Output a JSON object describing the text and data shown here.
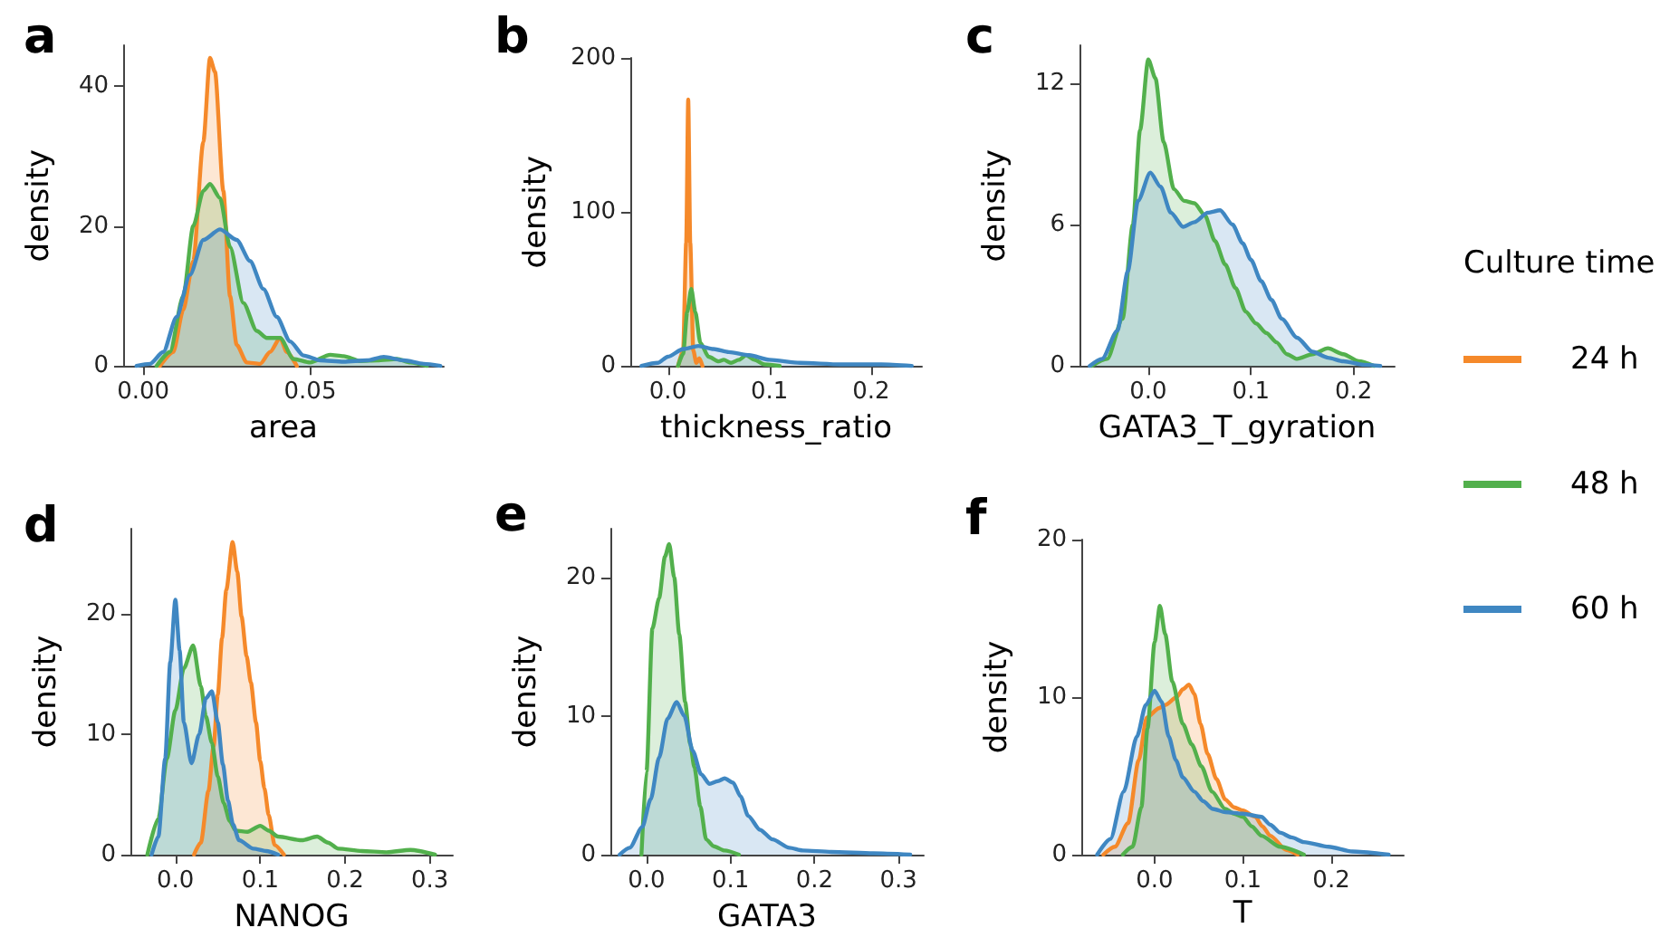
{
  "chart_data": [
    {
      "type": "area",
      "title": "a",
      "xlabel": "area",
      "ylabel": "density",
      "xlim": [
        -0.006,
        0.09
      ],
      "ylim": [
        0,
        45.8
      ],
      "xticks": [
        {
          "value": 0,
          "label": "0.00"
        },
        {
          "value": 0.05,
          "label": "0.05"
        }
      ],
      "yticks": [
        0,
        20,
        40
      ],
      "series": [
        {
          "color": "#f5892a",
          "x": [
            0.005,
            0.009,
            0.012,
            0.015,
            0.018,
            0.02,
            0.0215,
            0.024,
            0.026,
            0.028,
            0.031,
            0.035,
            0.038,
            0.041,
            0.043,
            0.046
          ],
          "values": [
            0,
            2,
            8,
            15,
            32,
            44,
            42,
            25,
            10,
            3,
            0.5,
            0.3,
            2,
            4,
            2,
            0
          ]
        },
        {
          "color": "#52b04c",
          "x": [
            0.004,
            0.008,
            0.012,
            0.015,
            0.018,
            0.02,
            0.023,
            0.026,
            0.03,
            0.034,
            0.037,
            0.041,
            0.045,
            0.05,
            0.056,
            0.06,
            0.065,
            0.07,
            0.076,
            0.08,
            0.085
          ],
          "values": [
            0,
            2,
            10,
            20,
            25,
            26,
            24,
            17,
            9,
            5,
            4,
            4,
            1,
            0.5,
            1.6,
            1.4,
            0.7,
            0.8,
            1,
            0.5,
            0
          ]
        },
        {
          "color": "#3f87c2",
          "x": [
            -0.002,
            0.002,
            0.006,
            0.01,
            0.014,
            0.018,
            0.023,
            0.028,
            0.032,
            0.036,
            0.04,
            0.044,
            0.048,
            0.053,
            0.06,
            0.067,
            0.072,
            0.078,
            0.084,
            0.089
          ],
          "values": [
            0,
            0.3,
            2,
            7,
            13,
            18,
            19.5,
            18,
            15,
            11,
            7,
            3.5,
            1.5,
            0.8,
            0.6,
            0.8,
            1.3,
            0.8,
            0.3,
            0
          ]
        }
      ]
    },
    {
      "type": "area",
      "title": "b",
      "xlabel": "thickness_ratio",
      "ylabel": "density",
      "xlim": [
        -0.037,
        0.25
      ],
      "ylim": [
        0,
        200
      ],
      "xticks": [
        {
          "value": 0,
          "label": "0.0"
        },
        {
          "value": 0.1,
          "label": "0.1"
        },
        {
          "value": 0.2,
          "label": "0.2"
        }
      ],
      "yticks": [
        0,
        100,
        200
      ],
      "series": [
        {
          "color": "#f5892a",
          "x": [
            0.01,
            0.015,
            0.018,
            0.02,
            0.022,
            0.025,
            0.028,
            0.031,
            0.034
          ],
          "values": [
            0,
            10,
            80,
            173,
            80,
            10,
            2,
            5,
            0
          ]
        },
        {
          "color": "#52b04c",
          "x": [
            0.01,
            0.015,
            0.019,
            0.023,
            0.027,
            0.032,
            0.04,
            0.05,
            0.055,
            0.062,
            0.07,
            0.077,
            0.085,
            0.095,
            0.11
          ],
          "values": [
            0,
            8,
            35,
            50,
            35,
            15,
            6,
            3,
            4,
            2,
            4,
            7,
            4,
            1,
            0
          ]
        },
        {
          "color": "#3f87c2",
          "x": [
            -0.026,
            -0.01,
            0.0,
            0.015,
            0.03,
            0.045,
            0.06,
            0.08,
            0.1,
            0.13,
            0.17,
            0.21,
            0.24
          ],
          "values": [
            0,
            2,
            6,
            11,
            13,
            11,
            9,
            7,
            4,
            2,
            1,
            1,
            0
          ]
        }
      ]
    },
    {
      "type": "area",
      "title": "c",
      "xlabel": "GATA3_T_gyration",
      "ylabel": "density",
      "xlim": [
        -0.067,
        0.24
      ],
      "ylim": [
        0,
        13.6
      ],
      "xticks": [
        {
          "value": 0,
          "label": "0.0"
        },
        {
          "value": 0.1,
          "label": "0.1"
        },
        {
          "value": 0.2,
          "label": "0.2"
        }
      ],
      "yticks": [
        0,
        6,
        12
      ],
      "series": [
        {
          "color": "#52b04c",
          "x": [
            -0.055,
            -0.04,
            -0.025,
            -0.015,
            -0.008,
            0.0,
            0.007,
            0.015,
            0.025,
            0.035,
            0.045,
            0.055,
            0.065,
            0.075,
            0.085,
            0.095,
            0.105,
            0.115,
            0.125,
            0.135,
            0.145,
            0.16,
            0.175,
            0.19,
            0.205,
            0.22
          ],
          "values": [
            0,
            0.3,
            2,
            6,
            10,
            13,
            12.2,
            9.5,
            7.5,
            7,
            6.9,
            6.4,
            5.3,
            4.3,
            3.3,
            2.3,
            1.8,
            1.4,
            1,
            0.5,
            0.3,
            0.5,
            0.75,
            0.5,
            0.2,
            0
          ]
        },
        {
          "color": "#3f87c2",
          "x": [
            -0.057,
            -0.045,
            -0.03,
            -0.02,
            -0.01,
            0.002,
            0.012,
            0.022,
            0.034,
            0.045,
            0.058,
            0.07,
            0.082,
            0.092,
            0.1,
            0.11,
            0.12,
            0.13,
            0.145,
            0.16,
            0.175,
            0.19,
            0.21,
            0.226
          ],
          "values": [
            0,
            0.3,
            1.5,
            4,
            7,
            8.2,
            7.6,
            6.5,
            5.9,
            6.1,
            6.5,
            6.6,
            6,
            5.2,
            4.5,
            3.6,
            2.8,
            2,
            1.2,
            0.6,
            0.35,
            0.2,
            0.05,
            0
          ]
        }
      ]
    },
    {
      "type": "area",
      "title": "d",
      "xlabel": "NANOG",
      "ylabel": "density",
      "xlim": [
        -0.053,
        0.327
      ],
      "ylim": [
        0,
        27.1
      ],
      "xticks": [
        {
          "value": 0,
          "label": "0.0"
        },
        {
          "value": 0.1,
          "label": "0.1"
        },
        {
          "value": 0.2,
          "label": "0.2"
        },
        {
          "value": 0.3,
          "label": "0.3"
        }
      ],
      "yticks": [
        0,
        10,
        20
      ],
      "series": [
        {
          "color": "#f5892a",
          "x": [
            0.022,
            0.03,
            0.039,
            0.045,
            0.05,
            0.055,
            0.06,
            0.0675,
            0.073,
            0.078,
            0.084,
            0.089,
            0.095,
            0.1,
            0.105,
            0.11,
            0.117,
            0.128
          ],
          "values": [
            0,
            1,
            5.3,
            9,
            13.3,
            18,
            22,
            26,
            23.5,
            19.8,
            16.5,
            14.3,
            11,
            7.8,
            5.5,
            3.3,
            0.8,
            0
          ]
        },
        {
          "color": "#52b04c",
          "x": [
            -0.033,
            -0.02,
            -0.01,
            0.0,
            0.01,
            0.021,
            0.03,
            0.036,
            0.043,
            0.05,
            0.057,
            0.064,
            0.071,
            0.085,
            0.1,
            0.11,
            0.121,
            0.149,
            0.167,
            0.18,
            0.192,
            0.22,
            0.249,
            0.277,
            0.306
          ],
          "values": [
            0,
            3,
            8,
            12,
            15.5,
            17.4,
            14,
            11.5,
            9.3,
            6.5,
            4.3,
            2.8,
            2,
            1.9,
            2.4,
            2,
            1.5,
            1.2,
            1.5,
            1,
            0.5,
            0.3,
            0.2,
            0.4,
            0
          ]
        },
        {
          "color": "#3f87c2",
          "x": [
            -0.028,
            -0.02,
            -0.012,
            -0.006,
            0.0,
            0.005,
            0.01,
            0.019,
            0.028,
            0.036,
            0.043,
            0.05,
            0.056,
            0.062,
            0.068,
            0.075,
            0.092,
            0.107,
            0.121
          ],
          "values": [
            0,
            1.5,
            8,
            16,
            21.2,
            17,
            11,
            7.6,
            10,
            13,
            13.6,
            11,
            7.5,
            4.5,
            2.5,
            1.2,
            0.5,
            0.3,
            0
          ]
        }
      ]
    },
    {
      "type": "area",
      "title": "e",
      "xlabel": "GATA3",
      "ylabel": "density",
      "xlim": [
        -0.043,
        0.33
      ],
      "ylim": [
        0,
        23.5
      ],
      "xticks": [
        {
          "value": 0,
          "label": "0.0"
        },
        {
          "value": 0.1,
          "label": "0.1"
        },
        {
          "value": 0.2,
          "label": "0.2"
        },
        {
          "value": 0.3,
          "label": "0.3"
        }
      ],
      "yticks": [
        0,
        10,
        20
      ],
      "series": [
        {
          "color": "#52b04c",
          "x": [
            -0.006,
            0.0,
            0.007,
            0.015,
            0.022,
            0.027,
            0.033,
            0.039,
            0.046,
            0.052,
            0.057,
            0.064,
            0.071,
            0.08,
            0.093,
            0.11
          ],
          "values": [
            0,
            6,
            16.3,
            18.5,
            21.5,
            22.4,
            20,
            15.9,
            11,
            8,
            6.3,
            3.5,
            1.1,
            0.6,
            0.3,
            0
          ]
        },
        {
          "color": "#3f87c2",
          "x": [
            -0.032,
            -0.02,
            -0.005,
            0.005,
            0.015,
            0.025,
            0.036,
            0.045,
            0.055,
            0.065,
            0.075,
            0.085,
            0.093,
            0.103,
            0.112,
            0.121,
            0.135,
            0.15,
            0.17,
            0.186,
            0.22,
            0.27,
            0.314
          ],
          "values": [
            0,
            0.5,
            2,
            4,
            7,
            9.8,
            11,
            10,
            7.5,
            5.8,
            5.1,
            5.3,
            5.5,
            5.2,
            4.2,
            2.8,
            1.8,
            1.1,
            0.5,
            0.3,
            0.2,
            0.1,
            0
          ]
        }
      ]
    },
    {
      "type": "area",
      "title": "f",
      "xlabel": "T",
      "ylabel": "density",
      "xlim": [
        -0.083,
        0.282
      ],
      "ylim": [
        0,
        20
      ],
      "xticks": [
        {
          "value": 0,
          "label": "0.0"
        },
        {
          "value": 0.1,
          "label": "0.1"
        },
        {
          "value": 0.2,
          "label": "0.2"
        }
      ],
      "yticks": [
        0,
        10,
        20
      ],
      "legend": "right",
      "legend_title": "Culture time",
      "series": [
        {
          "name": "24 h",
          "color": "#f5892a",
          "x": [
            -0.058,
            -0.045,
            -0.03,
            -0.018,
            -0.009,
            0.005,
            0.012,
            0.025,
            0.032,
            0.039,
            0.045,
            0.052,
            0.06,
            0.07,
            0.08,
            0.09,
            0.1,
            0.114,
            0.122,
            0.131,
            0.149,
            0.162
          ],
          "values": [
            0,
            0.5,
            2,
            6,
            8.7,
            9.3,
            9.5,
            10,
            10.5,
            10.8,
            10.2,
            8.3,
            6.4,
            4.8,
            3.5,
            3,
            2.8,
            2.4,
            1.8,
            1.2,
            0.3,
            0
          ]
        },
        {
          "name": "48 h",
          "color": "#52b04c",
          "x": [
            -0.036,
            -0.025,
            -0.015,
            -0.008,
            0.0,
            0.006,
            0.012,
            0.02,
            0.032,
            0.042,
            0.053,
            0.065,
            0.08,
            0.09,
            0.1,
            0.11,
            0.121,
            0.142,
            0.169
          ],
          "values": [
            0,
            0.5,
            3,
            8,
            13.5,
            15.8,
            14,
            11,
            8.3,
            7,
            5.6,
            4,
            2.9,
            2.6,
            2.4,
            1.8,
            1.2,
            0.5,
            0
          ]
        },
        {
          "name": "60 h",
          "color": "#3f87c2",
          "x": [
            -0.065,
            -0.05,
            -0.035,
            -0.02,
            -0.01,
            0.0,
            0.008,
            0.016,
            0.024,
            0.032,
            0.045,
            0.055,
            0.066,
            0.08,
            0.1,
            0.121,
            0.131,
            0.142,
            0.155,
            0.169,
            0.197,
            0.224,
            0.265
          ],
          "values": [
            0,
            1,
            4,
            7.5,
            9.5,
            10.4,
            9.7,
            7.5,
            6,
            4.9,
            4,
            3.4,
            2.9,
            2.7,
            2.6,
            2.4,
            1.9,
            1.4,
            1.1,
            0.8,
            0.5,
            0.2,
            0
          ]
        }
      ]
    }
  ]
}
